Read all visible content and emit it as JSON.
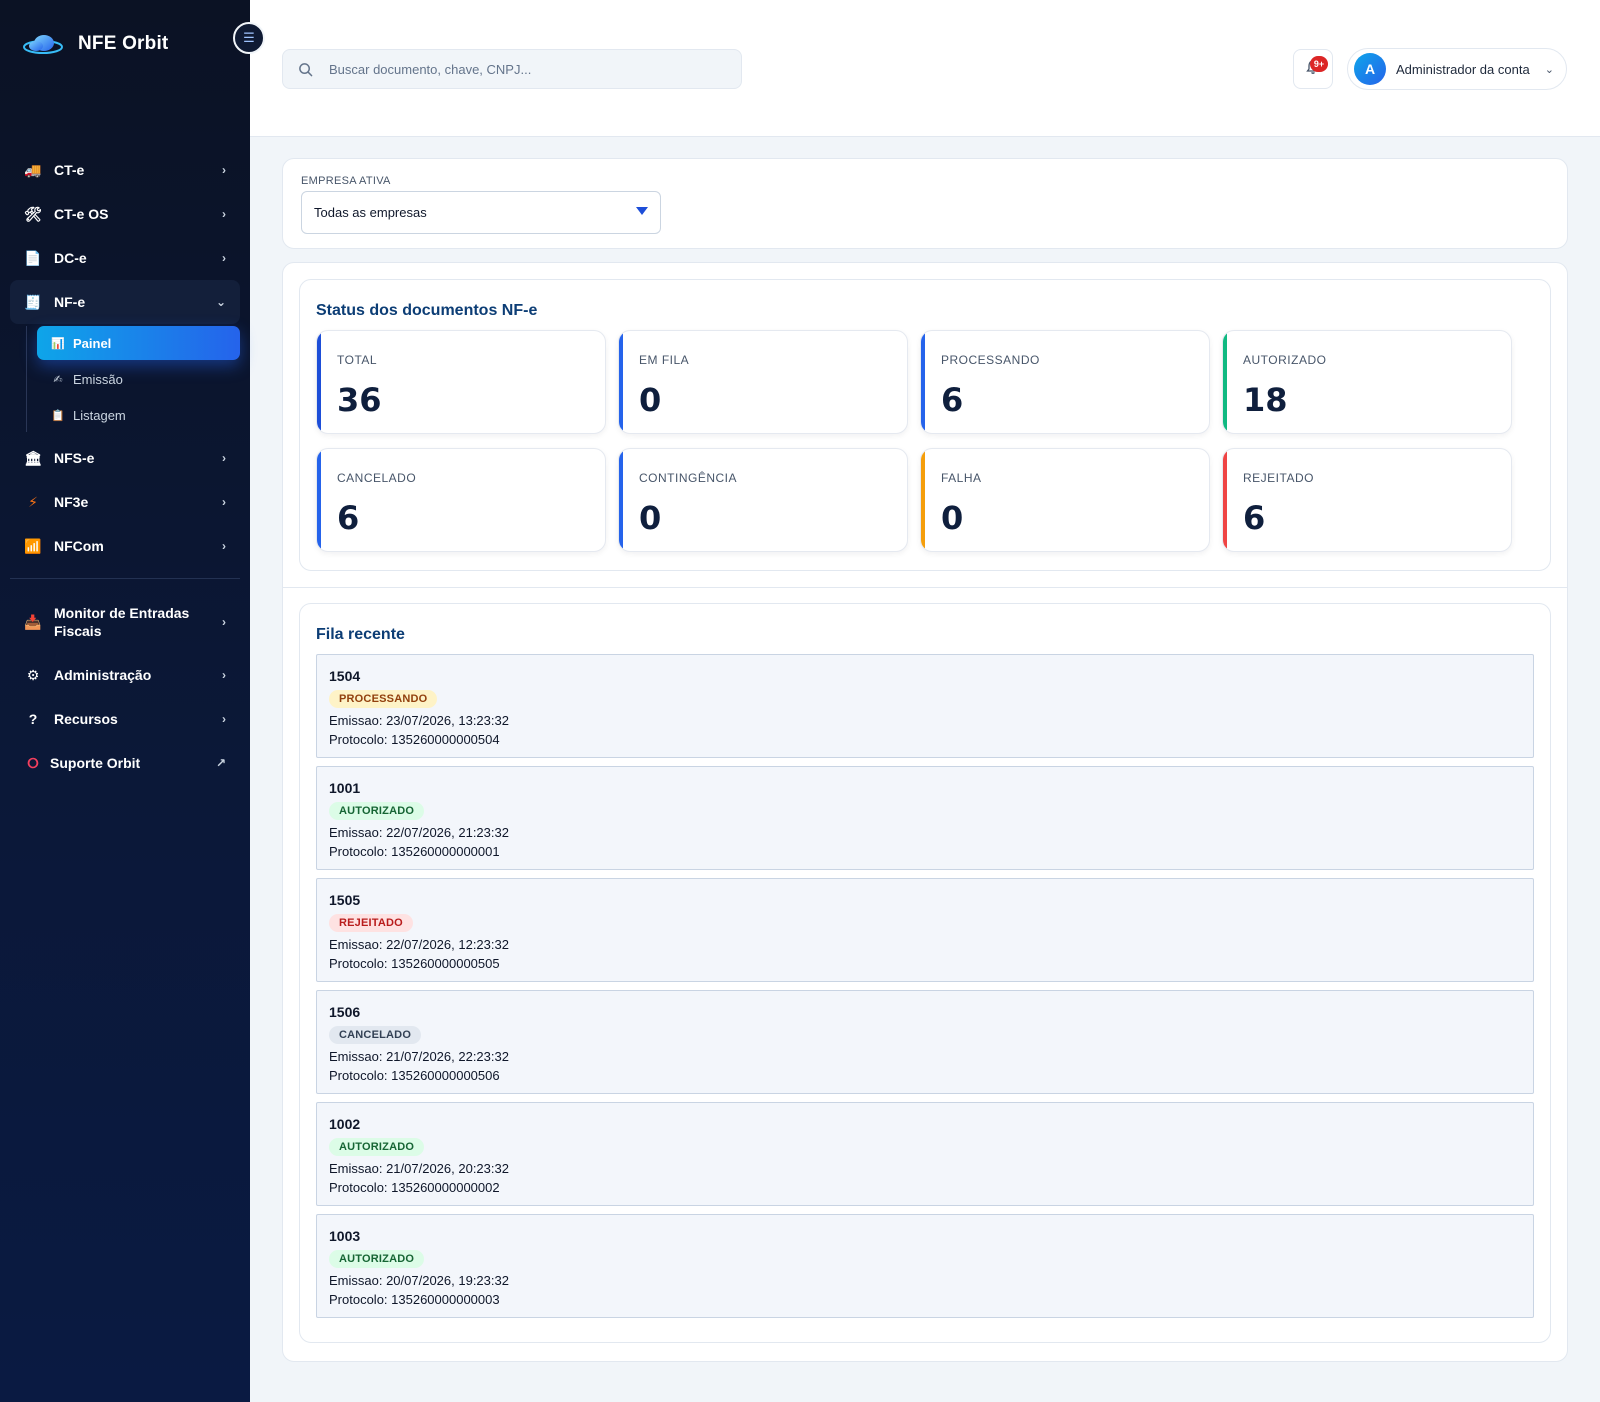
{
  "brand": {
    "name": "NFE Orbit"
  },
  "sidebar": {
    "items": [
      {
        "label": "CT-e",
        "icon": "truck-icon"
      },
      {
        "label": "CT-e OS",
        "icon": "tools-icon"
      },
      {
        "label": "DC-e",
        "icon": "document-icon"
      },
      {
        "label": "NF-e",
        "icon": "receipt-icon",
        "open": true,
        "children": [
          {
            "label": "Painel",
            "icon": "chart-icon",
            "active": true
          },
          {
            "label": "Emissão",
            "icon": "writing-hand-icon"
          },
          {
            "label": "Listagem",
            "icon": "list-icon"
          }
        ]
      },
      {
        "label": "NFS-e",
        "icon": "cloud-service-icon"
      },
      {
        "label": "NF3e",
        "icon": "lightning-icon"
      },
      {
        "label": "NFCom",
        "icon": "signal-chart-icon"
      }
    ],
    "secondary": [
      {
        "label": "Monitor de Entradas Fiscais",
        "icon": "inbox-icon"
      },
      {
        "label": "Administração",
        "icon": "gear-icon"
      },
      {
        "label": "Recursos",
        "icon": "question-icon"
      },
      {
        "label": "Suporte Orbit",
        "icon": "lifebuoy-icon"
      }
    ]
  },
  "topbar": {
    "search_placeholder": "Buscar documento, chave, CNPJ...",
    "notifications_badge": "9+",
    "user": {
      "initial": "A",
      "name": "Administrador da conta"
    }
  },
  "empresa": {
    "label": "EMPRESA ATIVA",
    "selected": "Todas as empresas"
  },
  "status": {
    "title": "Status dos documentos NF-e",
    "cards": [
      {
        "label": "TOTAL",
        "value": "36",
        "accent": "#1d4ed8"
      },
      {
        "label": "EM FILA",
        "value": "0",
        "accent": "#2563eb"
      },
      {
        "label": "PROCESSANDO",
        "value": "6",
        "accent": "#2563eb"
      },
      {
        "label": "AUTORIZADO",
        "value": "18",
        "accent": "#10b981"
      },
      {
        "label": "CANCELADO",
        "value": "6",
        "accent": "#2563eb"
      },
      {
        "label": "CONTINGÊNCIA",
        "value": "0",
        "accent": "#2563eb"
      },
      {
        "label": "FALHA",
        "value": "0",
        "accent": "#f59e0b"
      },
      {
        "label": "REJEITADO",
        "value": "6",
        "accent": "#ef4444"
      }
    ]
  },
  "queue": {
    "title": "Fila recente",
    "items": [
      {
        "number": "1504",
        "status": "PROCESSANDO",
        "emissao": "Emissao: 23/07/2026, 13:23:32",
        "protocolo": "Protocolo: 135260000000504"
      },
      {
        "number": "1001",
        "status": "AUTORIZADO",
        "emissao": "Emissao: 22/07/2026, 21:23:32",
        "protocolo": "Protocolo: 135260000000001"
      },
      {
        "number": "1505",
        "status": "REJEITADO",
        "emissao": "Emissao: 22/07/2026, 12:23:32",
        "protocolo": "Protocolo: 135260000000505"
      },
      {
        "number": "1506",
        "status": "CANCELADO",
        "emissao": "Emissao: 21/07/2026, 22:23:32",
        "protocolo": "Protocolo: 135260000000506"
      },
      {
        "number": "1002",
        "status": "AUTORIZADO",
        "emissao": "Emissao: 21/07/2026, 20:23:32",
        "protocolo": "Protocolo: 135260000000002"
      },
      {
        "number": "1003",
        "status": "AUTORIZADO",
        "emissao": "Emissao: 20/07/2026, 19:23:32",
        "protocolo": "Protocolo: 135260000000003"
      }
    ]
  },
  "colors": {
    "badge_processando_bg": "#fef3c7",
    "badge_processando_fg": "#92400e",
    "badge_autorizado_bg": "#dcfce7",
    "badge_autorizado_fg": "#166534",
    "badge_rejeitado_bg": "#fee2e2",
    "badge_rejeitado_fg": "#b91c1c",
    "badge_cancelado_bg": "#e2e8f0",
    "badge_cancelado_fg": "#334155"
  }
}
